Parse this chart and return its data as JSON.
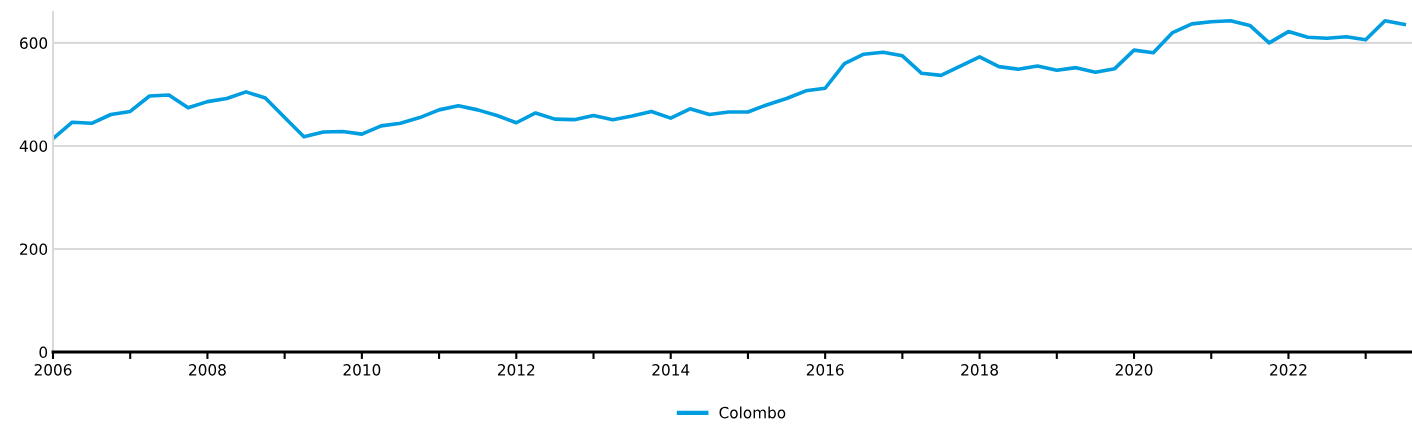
{
  "chart_data": {
    "type": "line",
    "x": [
      2006.0,
      2006.25,
      2006.5,
      2006.75,
      2007.0,
      2007.25,
      2007.5,
      2007.75,
      2008.0,
      2008.25,
      2008.5,
      2008.75,
      2009.0,
      2009.25,
      2009.5,
      2009.75,
      2010.0,
      2010.25,
      2010.5,
      2010.75,
      2011.0,
      2011.25,
      2011.5,
      2011.75,
      2012.0,
      2012.25,
      2012.5,
      2012.75,
      2013.0,
      2013.25,
      2013.5,
      2013.75,
      2014.0,
      2014.25,
      2014.5,
      2014.75,
      2015.0,
      2015.25,
      2015.5,
      2015.75,
      2016.0,
      2016.25,
      2016.5,
      2016.75,
      2017.0,
      2017.25,
      2017.5,
      2017.75,
      2018.0,
      2018.25,
      2018.5,
      2018.75,
      2019.0,
      2019.25,
      2019.5,
      2019.75,
      2020.0,
      2020.25,
      2020.5,
      2020.75,
      2021.0,
      2021.25,
      2021.5,
      2021.75,
      2022.0,
      2022.25,
      2022.5,
      2022.75,
      2023.0,
      2023.25,
      2023.5
    ],
    "series": [
      {
        "name": "Colombo",
        "color": "#009ee0",
        "values": [
          414,
          446,
          444,
          461,
          467,
          497,
          499,
          474,
          486,
          492,
          505,
          493,
          455,
          418,
          427,
          428,
          423,
          439,
          444,
          455,
          470,
          478,
          470,
          459,
          445,
          464,
          452,
          451,
          459,
          451,
          458,
          467,
          454,
          472,
          461,
          466,
          466,
          480,
          492,
          507,
          512,
          560,
          578,
          582,
          575,
          541,
          537,
          555,
          573,
          554,
          549,
          555,
          547,
          552,
          543,
          550,
          586,
          581,
          620,
          637,
          641,
          643,
          634,
          600,
          622,
          611,
          609,
          612,
          606,
          643,
          636
        ]
      }
    ],
    "xlim": [
      2006,
      2023.6
    ],
    "xticks": [
      2006,
      {
        "value": 2007,
        "label": null
      },
      2008,
      {
        "value": 2009,
        "label": null
      },
      2010,
      {
        "value": 2011,
        "label": null
      },
      2012,
      {
        "value": 2013,
        "label": null
      },
      2014,
      {
        "value": 2015,
        "label": null
      },
      2016,
      {
        "value": 2017,
        "label": null
      },
      2018,
      {
        "value": 2019,
        "label": null
      },
      2020,
      {
        "value": 2021,
        "label": null
      },
      2022,
      {
        "value": 2023,
        "label": null
      }
    ],
    "ylim": [
      0,
      660
    ],
    "yticks": [
      0,
      200,
      400,
      600
    ],
    "grid": "y",
    "legend": "bottom",
    "marker": "none",
    "line_style": "solid"
  }
}
